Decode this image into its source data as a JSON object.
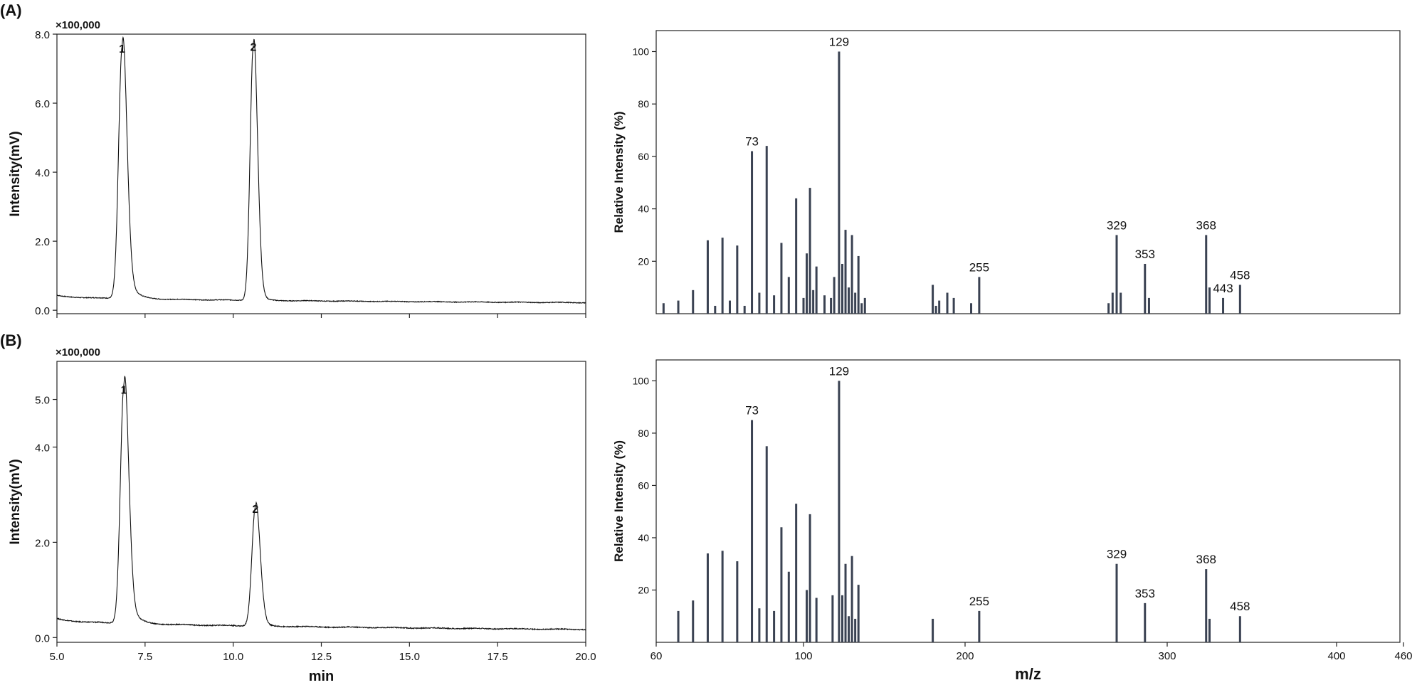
{
  "panels": [
    {
      "label": "(A)"
    },
    {
      "label": "(B)"
    }
  ],
  "chart_data": [
    {
      "id": "chromA",
      "type": "line",
      "multiplier": "×100,000",
      "ylabel": "Intensity(mV)",
      "xlabel": "",
      "xlim": [
        5.0,
        20.0
      ],
      "ylim": [
        -0.1,
        8.0
      ],
      "y_ticks": [
        "0.0",
        "2.0",
        "4.0",
        "6.0",
        "8.0"
      ],
      "x_ticks": [],
      "baseline": {
        "start": 0.45,
        "end": 0.22
      },
      "peaks": [
        {
          "label": "1",
          "rt": 6.85,
          "height": 7.3,
          "width": 0.1,
          "tail": 0.22
        },
        {
          "label": "2",
          "rt": 10.57,
          "height": 7.35,
          "width": 0.09,
          "tail": 0.12
        }
      ]
    },
    {
      "id": "chromB",
      "type": "line",
      "multiplier": "×100,000",
      "ylabel": "Intensity(mV)",
      "xlabel": "min",
      "xlim": [
        5.0,
        20.0
      ],
      "ylim": [
        -0.1,
        5.8
      ],
      "y_ticks": [
        "0.0",
        "2.0",
        "4.0",
        "5.0"
      ],
      "x_ticks": [
        "5.0",
        "7.5",
        "10.0",
        "12.5",
        "15.0",
        "17.5",
        "20.0"
      ],
      "baseline": {
        "start": 0.42,
        "end": 0.17
      },
      "peaks": [
        {
          "label": "1",
          "rt": 6.9,
          "height": 5.0,
          "width": 0.1,
          "tail": 0.22
        },
        {
          "label": "2",
          "rt": 10.63,
          "height": 2.5,
          "width": 0.1,
          "tail": 0.13
        }
      ]
    },
    {
      "id": "msA",
      "type": "bar",
      "ylabel": "Relative Intensity (%)",
      "xlabel": "",
      "xlim": [
        60,
        463
      ],
      "ylim": [
        0,
        108
      ],
      "y_ticks": [
        "20",
        "40",
        "60",
        "80",
        "100"
      ],
      "x_ticks": [],
      "peaks": [
        {
          "mz": 62,
          "value": 4
        },
        {
          "mz": 66,
          "value": 5
        },
        {
          "mz": 70,
          "value": 9
        },
        {
          "mz": 74,
          "value": 28
        },
        {
          "mz": 76,
          "value": 3
        },
        {
          "mz": 78,
          "value": 29
        },
        {
          "mz": 80,
          "value": 5
        },
        {
          "mz": 82,
          "value": 26
        },
        {
          "mz": 84,
          "value": 3
        },
        {
          "mz": 86,
          "value": 62,
          "label": "73"
        },
        {
          "mz": 88,
          "value": 8
        },
        {
          "mz": 90,
          "value": 64
        },
        {
          "mz": 92,
          "value": 7
        },
        {
          "mz": 94,
          "value": 27
        },
        {
          "mz": 96,
          "value": 14
        },
        {
          "mz": 98,
          "value": 44
        },
        {
          "mz": 100,
          "value": 6
        },
        {
          "mz": 102,
          "value": 23
        },
        {
          "mz": 104,
          "value": 48
        },
        {
          "mz": 106,
          "value": 9
        },
        {
          "mz": 108,
          "value": 18
        },
        {
          "mz": 113,
          "value": 7
        },
        {
          "mz": 117,
          "value": 6
        },
        {
          "mz": 119,
          "value": 14
        },
        {
          "mz": 122,
          "value": 100,
          "label": "129"
        },
        {
          "mz": 124,
          "value": 19
        },
        {
          "mz": 126,
          "value": 32
        },
        {
          "mz": 128,
          "value": 10
        },
        {
          "mz": 130,
          "value": 30
        },
        {
          "mz": 132,
          "value": 8
        },
        {
          "mz": 134,
          "value": 22
        },
        {
          "mz": 136,
          "value": 4
        },
        {
          "mz": 138,
          "value": 6
        },
        {
          "mz": 180,
          "value": 11
        },
        {
          "mz": 182,
          "value": 3
        },
        {
          "mz": 184,
          "value": 5
        },
        {
          "mz": 189,
          "value": 8
        },
        {
          "mz": 193,
          "value": 6
        },
        {
          "mz": 203,
          "value": 4
        },
        {
          "mz": 207,
          "value": 14,
          "label": "255"
        },
        {
          "mz": 271,
          "value": 4
        },
        {
          "mz": 273,
          "value": 8
        },
        {
          "mz": 275,
          "value": 30,
          "label": "329"
        },
        {
          "mz": 277,
          "value": 8
        },
        {
          "mz": 289,
          "value": 19,
          "label": "353"
        },
        {
          "mz": 291,
          "value": 6
        },
        {
          "mz": 323,
          "value": 30,
          "label": "368"
        },
        {
          "mz": 325,
          "value": 10
        },
        {
          "mz": 333,
          "value": 6,
          "label": "443"
        },
        {
          "mz": 343,
          "value": 11,
          "label": "458"
        }
      ]
    },
    {
      "id": "msB",
      "type": "bar",
      "ylabel": "Relative Intensity (%)",
      "xlabel": "m/z",
      "xlim": [
        60,
        463
      ],
      "ylim": [
        0,
        108
      ],
      "y_ticks": [
        "20",
        "40",
        "60",
        "80",
        "100"
      ],
      "x_ticks": [
        "60",
        "100",
        "200",
        "300",
        "400",
        "460"
      ],
      "peaks": [
        {
          "mz": 66,
          "value": 12
        },
        {
          "mz": 70,
          "value": 16
        },
        {
          "mz": 74,
          "value": 34
        },
        {
          "mz": 78,
          "value": 35
        },
        {
          "mz": 82,
          "value": 31
        },
        {
          "mz": 86,
          "value": 85,
          "label": "73"
        },
        {
          "mz": 88,
          "value": 13
        },
        {
          "mz": 90,
          "value": 75
        },
        {
          "mz": 92,
          "value": 12
        },
        {
          "mz": 94,
          "value": 44
        },
        {
          "mz": 96,
          "value": 27
        },
        {
          "mz": 98,
          "value": 53
        },
        {
          "mz": 102,
          "value": 20
        },
        {
          "mz": 104,
          "value": 49
        },
        {
          "mz": 108,
          "value": 17
        },
        {
          "mz": 118,
          "value": 18
        },
        {
          "mz": 122,
          "value": 100,
          "label": "129"
        },
        {
          "mz": 124,
          "value": 18
        },
        {
          "mz": 126,
          "value": 30
        },
        {
          "mz": 128,
          "value": 10
        },
        {
          "mz": 130,
          "value": 33
        },
        {
          "mz": 132,
          "value": 9
        },
        {
          "mz": 134,
          "value": 22
        },
        {
          "mz": 180,
          "value": 9
        },
        {
          "mz": 207,
          "value": 12,
          "label": "255"
        },
        {
          "mz": 275,
          "value": 30,
          "label": "329"
        },
        {
          "mz": 289,
          "value": 15,
          "label": "353"
        },
        {
          "mz": 323,
          "value": 28,
          "label": "368"
        },
        {
          "mz": 325,
          "value": 9
        },
        {
          "mz": 343,
          "value": 10,
          "label": "458"
        }
      ]
    }
  ]
}
